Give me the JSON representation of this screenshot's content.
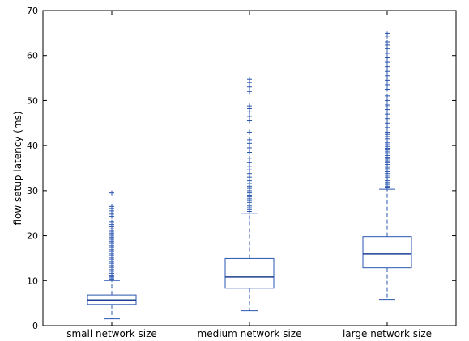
{
  "chart_data": {
    "type": "box",
    "ylabel": "flow setup latency (ms)",
    "ylim": [
      0,
      70
    ],
    "yticks": [
      0,
      10,
      20,
      30,
      40,
      50,
      60,
      70
    ],
    "categories": [
      "small network size",
      "medium network size",
      "large network size"
    ],
    "grid": false,
    "colors": {
      "box": "#2a56b0",
      "median": "#1b3f8f",
      "frame": "#000000"
    },
    "boxes": [
      {
        "category": "small network size",
        "whisker_low": 1.5,
        "q1": 4.7,
        "median": 5.7,
        "q3": 6.8,
        "whisker_high": 10.0,
        "outliers": [
          10.3,
          10.6,
          10.9,
          11.2,
          11.6,
          12.0,
          12.4,
          12.9,
          13.3,
          13.8,
          14.2,
          14.7,
          15.1,
          15.6,
          16.0,
          16.5,
          16.9,
          17.4,
          17.8,
          18.3,
          18.8,
          19.2,
          19.7,
          20.1,
          20.6,
          21.0,
          21.5,
          22.0,
          22.5,
          23.0,
          24.3,
          24.8,
          25.5,
          26.0,
          26.5,
          29.5
        ]
      },
      {
        "category": "medium network size",
        "whisker_low": 3.3,
        "q1": 8.3,
        "median": 10.8,
        "q3": 15.0,
        "whisker_high": 25.0,
        "outliers": [
          25.4,
          25.8,
          26.2,
          26.6,
          27.0,
          27.4,
          27.8,
          28.2,
          28.6,
          29.0,
          29.5,
          30.0,
          30.5,
          31.0,
          31.6,
          32.2,
          33.0,
          33.8,
          34.6,
          35.4,
          36.2,
          37.2,
          38.5,
          39.5,
          40.5,
          41.3,
          43.0,
          45.5,
          46.5,
          47.5,
          48.2,
          48.8,
          52.0,
          53.0,
          54.0,
          54.7
        ]
      },
      {
        "category": "large network size",
        "whisker_low": 5.8,
        "q1": 12.8,
        "median": 16.0,
        "q3": 19.8,
        "whisker_high": 30.3,
        "outliers": [
          30.6,
          31.0,
          31.4,
          31.8,
          32.2,
          32.6,
          33.0,
          33.4,
          33.8,
          34.2,
          34.6,
          35.0,
          35.4,
          35.8,
          36.2,
          36.6,
          37.0,
          37.4,
          37.8,
          38.2,
          38.6,
          39.0,
          39.4,
          39.8,
          40.2,
          40.6,
          41.0,
          41.5,
          42.0,
          42.5,
          43.0,
          44.0,
          45.0,
          46.0,
          47.0,
          48.0,
          48.6,
          49.0,
          50.0,
          51.0,
          52.5,
          53.5,
          54.5,
          55.5,
          56.5,
          57.5,
          58.5,
          59.5,
          60.5,
          61.5,
          62.3,
          63.0,
          64.3,
          64.9
        ]
      }
    ]
  }
}
